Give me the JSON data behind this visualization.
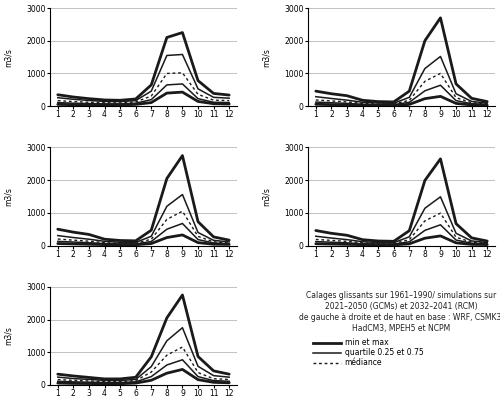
{
  "months": [
    1,
    2,
    3,
    4,
    5,
    6,
    7,
    8,
    9,
    10,
    11,
    12
  ],
  "panels": [
    {
      "name": "WRF",
      "max": [
        350,
        280,
        230,
        190,
        180,
        220,
        650,
        2100,
        2250,
        780,
        390,
        340
      ],
      "q75": [
        260,
        210,
        175,
        145,
        140,
        170,
        460,
        1550,
        1580,
        530,
        270,
        245
      ],
      "median": [
        170,
        140,
        120,
        105,
        100,
        130,
        310,
        1000,
        1020,
        360,
        185,
        170
      ],
      "q25": [
        110,
        90,
        80,
        70,
        70,
        90,
        200,
        650,
        680,
        230,
        120,
        110
      ],
      "min": [
        55,
        45,
        40,
        38,
        38,
        55,
        110,
        400,
        430,
        145,
        75,
        65
      ]
    },
    {
      "name": "CSMK3",
      "max": [
        460,
        380,
        320,
        180,
        140,
        130,
        460,
        2000,
        2700,
        680,
        240,
        140
      ],
      "q75": [
        290,
        235,
        185,
        120,
        95,
        90,
        270,
        1150,
        1520,
        380,
        145,
        95
      ],
      "median": [
        190,
        160,
        130,
        85,
        65,
        65,
        180,
        760,
        1000,
        260,
        105,
        75
      ],
      "q25": [
        125,
        105,
        85,
        57,
        47,
        47,
        118,
        470,
        640,
        170,
        75,
        52
      ],
      "min": [
        58,
        48,
        38,
        28,
        23,
        23,
        55,
        230,
        300,
        85,
        38,
        32
      ]
    },
    {
      "name": "HadCM3",
      "max": [
        500,
        410,
        340,
        195,
        155,
        145,
        470,
        2050,
        2750,
        730,
        265,
        165
      ],
      "q75": [
        305,
        245,
        195,
        130,
        100,
        95,
        285,
        1200,
        1560,
        400,
        160,
        110
      ],
      "median": [
        200,
        165,
        135,
        88,
        70,
        68,
        195,
        800,
        1050,
        280,
        115,
        80
      ],
      "q25": [
        128,
        108,
        88,
        59,
        49,
        49,
        125,
        500,
        675,
        183,
        80,
        55
      ],
      "min": [
        62,
        50,
        40,
        30,
        25,
        25,
        62,
        245,
        325,
        90,
        41,
        35
      ]
    },
    {
      "name": "MPEH5",
      "max": [
        460,
        375,
        315,
        180,
        140,
        130,
        455,
        1990,
        2650,
        670,
        235,
        138
      ],
      "q75": [
        285,
        230,
        182,
        118,
        93,
        88,
        268,
        1140,
        1490,
        375,
        142,
        93
      ],
      "median": [
        188,
        158,
        128,
        84,
        63,
        63,
        178,
        755,
        990,
        255,
        103,
        73
      ],
      "q25": [
        122,
        103,
        83,
        55,
        45,
        45,
        115,
        465,
        635,
        168,
        73,
        50
      ],
      "min": [
        56,
        46,
        37,
        27,
        22,
        22,
        53,
        225,
        295,
        83,
        37,
        31
      ]
    },
    {
      "name": "NCPM",
      "max": [
        330,
        275,
        230,
        185,
        185,
        235,
        860,
        2050,
        2750,
        870,
        430,
        330
      ],
      "q75": [
        240,
        195,
        170,
        140,
        138,
        168,
        560,
        1350,
        1750,
        570,
        285,
        238
      ],
      "median": [
        165,
        140,
        122,
        105,
        104,
        132,
        395,
        910,
        1160,
        380,
        190,
        168
      ],
      "q25": [
        112,
        95,
        85,
        75,
        75,
        95,
        255,
        610,
        770,
        255,
        133,
        113
      ],
      "min": [
        57,
        47,
        43,
        38,
        38,
        57,
        143,
        360,
        475,
        162,
        80,
        66
      ]
    }
  ],
  "ylabel": "m3/s",
  "ylim": [
    0,
    3000
  ],
  "yticks": [
    0,
    1000,
    2000,
    3000
  ],
  "xticks": [
    1,
    2,
    3,
    4,
    5,
    6,
    7,
    8,
    9,
    10,
    11,
    12
  ],
  "legend_text_line1": "Calages glissants sur 1961–1990/ simulations sur",
  "legend_text_line2": "2021–2050 (GCMs) et 2032–2041 (RCM)",
  "legend_text_line3": "de gauche à droite et de haut en base : WRF, CSMK3,",
  "legend_text_line4": "HadCM3, MPEH5 et NCPM",
  "legend_items": [
    {
      "label": "min et max"
    },
    {
      "label": "quartile 0.25 et 0.75"
    },
    {
      "label": "médiance"
    }
  ],
  "background_color": "#ffffff",
  "line_color": "#1a1a1a"
}
